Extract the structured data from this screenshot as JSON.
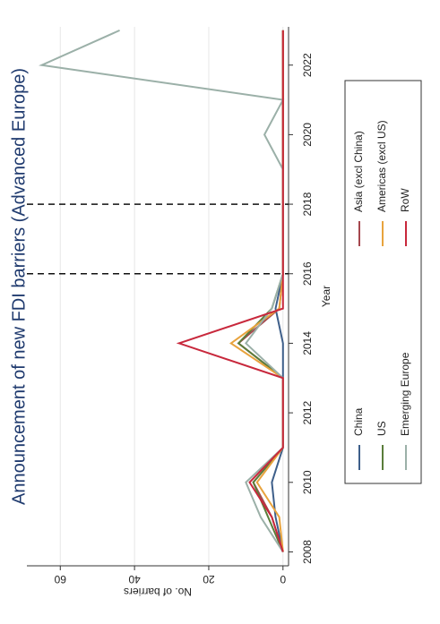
{
  "chart_data": {
    "type": "line",
    "title": "Announcement of new FDI barriers (Advanced Europe)",
    "x_label": "Year",
    "y_label": "No. of barriers",
    "x": [
      2008,
      2009,
      2010,
      2011,
      2012,
      2013,
      2014,
      2015,
      2016,
      2017,
      2018,
      2019,
      2020,
      2021,
      2022,
      2023
    ],
    "series": [
      {
        "name": "China",
        "color": "#3e5f8a",
        "values": [
          0,
          2,
          3,
          0,
          0,
          0,
          0,
          2,
          0,
          0,
          0,
          0,
          0,
          0,
          0,
          0
        ]
      },
      {
        "name": "Asia (excl China)",
        "color": "#a5474e",
        "values": [
          0,
          3,
          8,
          0,
          0,
          0,
          12,
          1,
          0,
          0,
          0,
          0,
          0,
          0,
          0,
          0
        ]
      },
      {
        "name": "US",
        "color": "#5a7d3a",
        "values": [
          0,
          4,
          8,
          0,
          0,
          0,
          12,
          3,
          0,
          0,
          0,
          0,
          0,
          0,
          0,
          0
        ]
      },
      {
        "name": "Americas (excl US)",
        "color": "#e8a33d",
        "values": [
          0,
          1,
          7,
          0,
          0,
          0,
          14,
          1,
          0,
          0,
          0,
          0,
          0,
          0,
          0,
          0
        ]
      },
      {
        "name": "Emerging Europe",
        "color": "#9bb0a8",
        "values": [
          0,
          6,
          10,
          0,
          0,
          0,
          10,
          3,
          0,
          0,
          0,
          0,
          5,
          0,
          65,
          44
        ]
      },
      {
        "name": "RoW",
        "color": "#c8283c",
        "values": [
          0,
          3,
          9,
          0,
          0,
          0,
          28,
          0,
          0,
          0,
          0,
          0,
          0,
          0,
          0,
          0
        ]
      }
    ],
    "xlim": [
      2007.6,
      2023.1
    ],
    "ylim": [
      -1.5,
      69
    ],
    "xticks": [
      2008,
      2010,
      2012,
      2014,
      2016,
      2018,
      2020,
      2022
    ],
    "yticks": [
      0,
      20,
      40,
      60
    ],
    "vlines": [
      2016,
      2018
    ],
    "grid": true,
    "legend": "bottom"
  }
}
